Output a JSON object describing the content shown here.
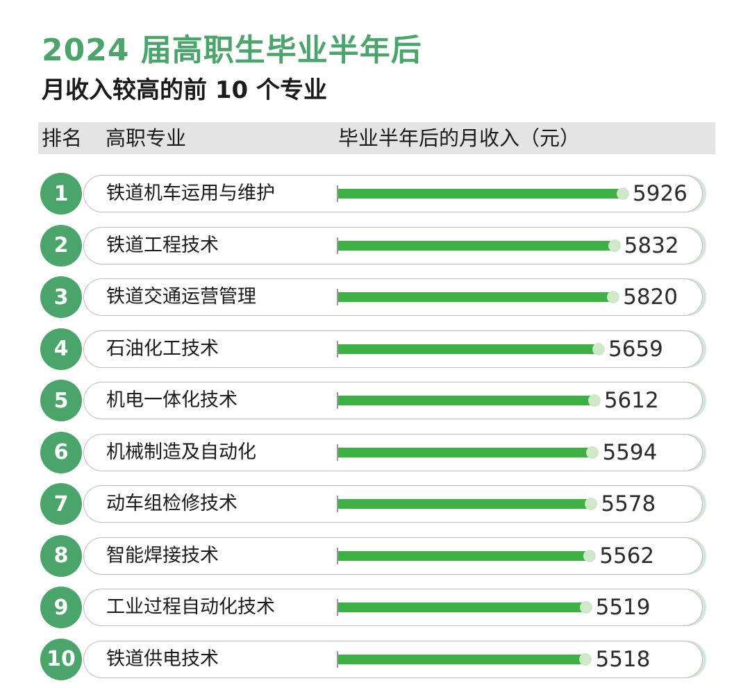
{
  "header": {
    "title": "2024 届高职生毕业半年后",
    "subtitle": "月收入较高的前 10 个专业"
  },
  "table_header": {
    "rank": "排名",
    "major": "高职专业",
    "income": "毕业半年后的月收入（元）"
  },
  "colors": {
    "accent": "#4aa56a",
    "bar": "#3cb043",
    "header_bg": "#e4e4e4"
  },
  "chart_data": {
    "type": "bar",
    "orientation": "horizontal",
    "title": "2024 届高职生毕业半年后",
    "subtitle": "月收入较高的前 10 个专业",
    "ranks": [
      "1",
      "2",
      "3",
      "4",
      "5",
      "6",
      "7",
      "8",
      "9",
      "10"
    ],
    "categories": [
      "铁道机车运用与维护",
      "铁道工程技术",
      "铁道交通运营管理",
      "石油化工技术",
      "机电一体化技术",
      "机械制造及自动化",
      "动车组检修技术",
      "智能焊接技术",
      "工业过程自动化技术",
      "铁道供电技术"
    ],
    "values": [
      5926,
      5832,
      5820,
      5659,
      5612,
      5594,
      5578,
      5562,
      5519,
      5518
    ],
    "value_labels": [
      "5926",
      "5832",
      "5820",
      "5659",
      "5612",
      "5594",
      "5578",
      "5562",
      "5519",
      "5518"
    ],
    "ylabel": "毕业半年后的月收入（元）",
    "grid": false,
    "legend": "none"
  }
}
